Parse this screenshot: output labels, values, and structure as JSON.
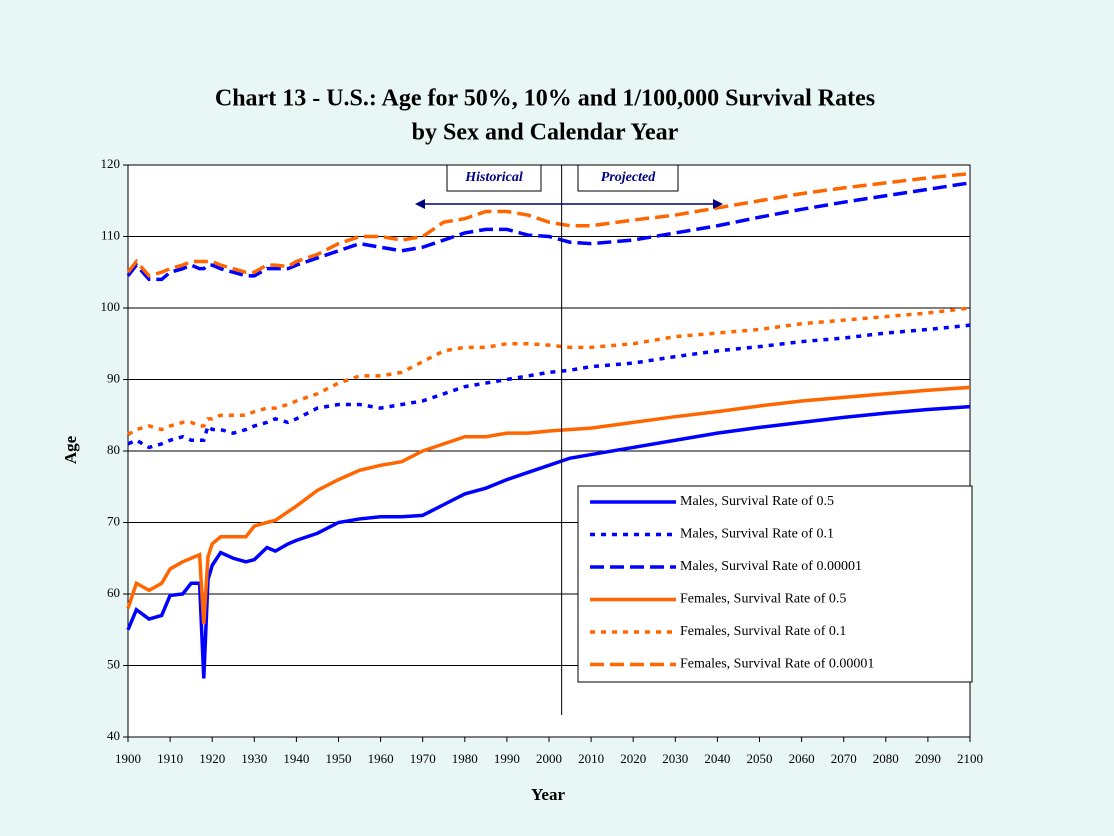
{
  "chart_data": {
    "type": "line",
    "title": "Chart 13 - U.S.:  Age for 50%, 10% and 1/100,000 Survival Rates",
    "subtitle": "by Sex and Calendar Year",
    "x_label": "Year",
    "y_label": "Age",
    "annotations": [
      "Historical",
      "Projected"
    ],
    "projection_start": 2003,
    "x": [
      1900,
      1902,
      1905,
      1908,
      1910,
      1913,
      1915,
      1917,
      1918,
      1919,
      1920,
      1922,
      1925,
      1928,
      1930,
      1933,
      1935,
      1938,
      1940,
      1945,
      1950,
      1955,
      1960,
      1965,
      1970,
      1975,
      1980,
      1985,
      1990,
      1995,
      2000,
      2005,
      2010,
      2020,
      2030,
      2040,
      2050,
      2060,
      2070,
      2080,
      2090,
      2100
    ],
    "series": [
      {
        "name": "Males, Survival Rate of 0.5",
        "color": "#0000ff",
        "dash": "solid",
        "values": [
          55,
          57.8,
          56.5,
          57,
          59.8,
          60,
          61.5,
          61.5,
          48.2,
          62,
          64,
          65.8,
          65,
          64.5,
          64.8,
          66.5,
          66,
          67,
          67.5,
          68.5,
          70,
          70.5,
          70.8,
          70.8,
          71,
          72.5,
          74,
          74.8,
          76,
          77,
          78,
          79,
          79.5,
          80.5,
          81.5,
          82.5,
          83.3,
          84,
          84.7,
          85.3,
          85.8,
          86.2
        ]
      },
      {
        "name": "Males, Survival Rate of 0.1",
        "color": "#0000ff",
        "dash": "dotted",
        "values": [
          81,
          81.5,
          80.5,
          81,
          81.5,
          82,
          81.5,
          81.5,
          81.5,
          83.5,
          83,
          83,
          82.5,
          83,
          83.5,
          84,
          84.5,
          84,
          84.5,
          86,
          86.5,
          86.5,
          86,
          86.5,
          87,
          88,
          89,
          89.5,
          90,
          90.5,
          91,
          91.3,
          91.8,
          92.3,
          93.2,
          94,
          94.6,
          95.3,
          95.8,
          96.5,
          97,
          97.6
        ]
      },
      {
        "name": "Males, Survival Rate of 0.00001",
        "color": "#0000ff",
        "dash": "dashed",
        "values": [
          104.5,
          106,
          104,
          104,
          105,
          105.5,
          106,
          105.5,
          105.5,
          106,
          106,
          105.5,
          105,
          104.5,
          104.5,
          105.5,
          105.5,
          105.5,
          106,
          107,
          108,
          109,
          108.5,
          108,
          108.5,
          109.5,
          110.5,
          111,
          111,
          110.2,
          110,
          109.2,
          109,
          109.5,
          110.5,
          111.5,
          112.7,
          113.8,
          114.8,
          115.7,
          116.6,
          117.5
        ]
      },
      {
        "name": "Females, Survival Rate of 0.5",
        "color": "#ff6600",
        "dash": "solid",
        "values": [
          58,
          61.5,
          60.5,
          61.5,
          63.5,
          64.5,
          65,
          65.5,
          55.8,
          65.2,
          67,
          68,
          68,
          68,
          69.5,
          70,
          70.3,
          71.5,
          72.3,
          74.5,
          76,
          77.3,
          78,
          78.5,
          80,
          81,
          82,
          82,
          82.5,
          82.5,
          82.8,
          83,
          83.2,
          84,
          84.8,
          85.5,
          86.3,
          87,
          87.5,
          88,
          88.5,
          88.9
        ]
      },
      {
        "name": "Females, Survival Rate of 0.1",
        "color": "#ff6600",
        "dash": "dotted",
        "values": [
          82.3,
          83,
          83.5,
          83,
          83.5,
          84,
          84,
          83.5,
          83.5,
          84.5,
          84.5,
          85,
          85,
          85,
          85.5,
          86,
          86,
          86.5,
          87,
          88,
          89.5,
          90.5,
          90.5,
          91,
          92.5,
          94,
          94.5,
          94.5,
          95,
          95,
          94.8,
          94.5,
          94.5,
          95,
          96,
          96.5,
          97,
          97.8,
          98.3,
          98.8,
          99.3,
          100
        ]
      },
      {
        "name": "Females, Survival Rate of 0.00001",
        "color": "#ff6600",
        "dash": "dashed",
        "values": [
          105,
          106.5,
          104.5,
          105,
          105.5,
          106,
          106.5,
          106.5,
          106.5,
          106.5,
          106.5,
          106,
          105.5,
          105,
          105,
          106,
          106,
          105.8,
          106.5,
          107.5,
          109,
          110,
          110,
          109.5,
          110,
          112,
          112.5,
          113.5,
          113.5,
          113,
          112,
          111.5,
          111.5,
          112.3,
          113,
          114,
          115,
          116,
          116.8,
          117.5,
          118.2,
          118.8
        ]
      }
    ],
    "xlim": [
      1900,
      2100
    ],
    "xticks": [
      1900,
      1910,
      1920,
      1930,
      1940,
      1950,
      1960,
      1970,
      1980,
      1990,
      2000,
      2010,
      2020,
      2030,
      2040,
      2050,
      2060,
      2070,
      2080,
      2090,
      2100
    ],
    "ylim": [
      40,
      120
    ],
    "yticks": [
      40,
      50,
      60,
      70,
      80,
      90,
      100,
      110,
      120
    ],
    "grid": true,
    "legend": "lower right"
  }
}
